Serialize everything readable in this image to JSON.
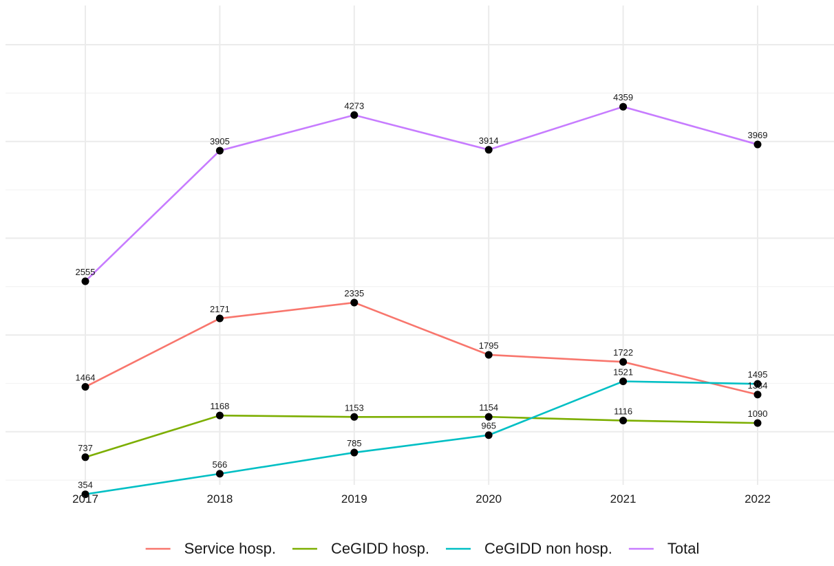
{
  "chart_data": {
    "type": "line",
    "title": "",
    "xlabel": "",
    "ylabel": "",
    "x": [
      "2017",
      "2018",
      "2019",
      "2020",
      "2021",
      "2022"
    ],
    "ylim": [
      0,
      4600
    ],
    "y_tick_labels_shown": false,
    "grid": true,
    "legend_position": "bottom",
    "series": [
      {
        "name": "Service hosp.",
        "color": "#F8766D",
        "values": [
          1464,
          2171,
          2335,
          1795,
          1722,
          1384
        ]
      },
      {
        "name": "CeGIDD hosp.",
        "color": "#7CAE00",
        "values": [
          737,
          1168,
          1153,
          1154,
          1116,
          1090
        ]
      },
      {
        "name": "CeGIDD non hosp.",
        "color": "#00BFC4",
        "values": [
          354,
          566,
          785,
          965,
          1521,
          1495
        ]
      },
      {
        "name": "Total",
        "color": "#C77CFF",
        "values": [
          2555,
          3905,
          4273,
          3914,
          4359,
          3969
        ]
      }
    ]
  }
}
